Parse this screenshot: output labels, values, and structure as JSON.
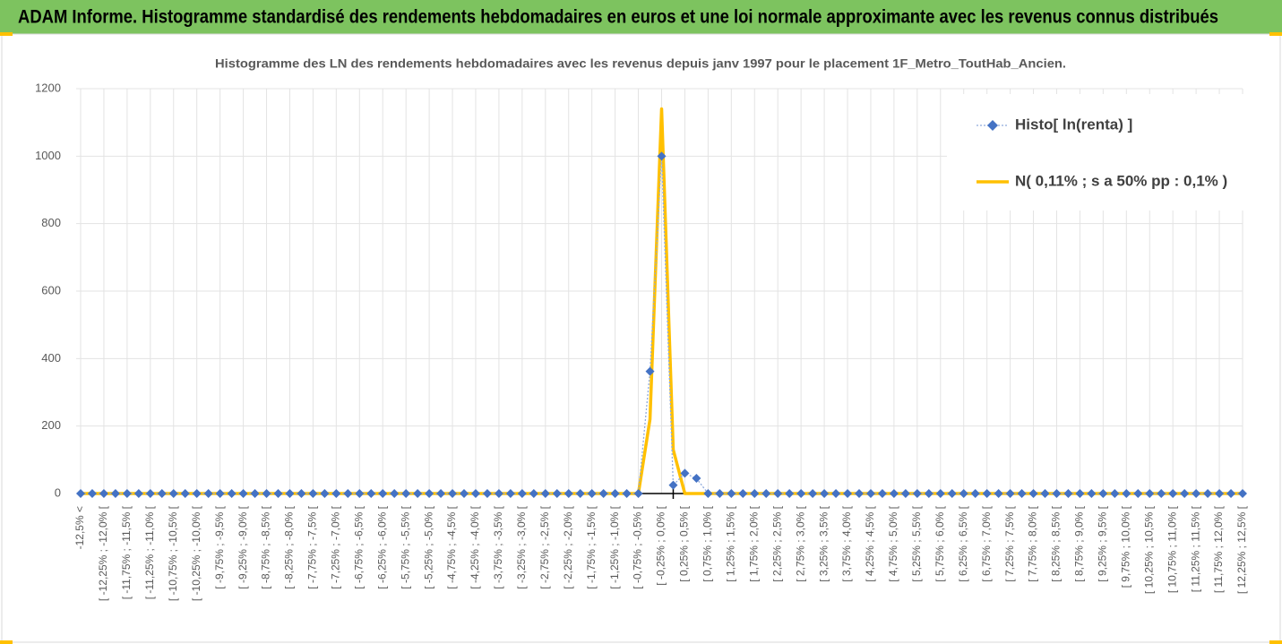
{
  "header": {
    "title": "ADAM Informe. Histogramme standardisé des rendements hebdomadaires en euros et une loi normale approximante avec les revenus connus distribués"
  },
  "chart_data": {
    "type": "line",
    "title": "Histogramme  des LN des rendements hebdomadaires avec les revenus depuis janv 1997 pour le placement 1F_Metro_ToutHab_Ancien.",
    "categories": [
      "-12,5% <",
      null,
      "[ -12,25% ; -12,0% [",
      null,
      "[ -11,75% ; -11,5% [",
      null,
      "[ -11,25% ; -11,0% [",
      null,
      "[ -10,75% ; -10,5% [",
      null,
      "[ -10,25% ; -10,0% [",
      null,
      "[ -9,75% ; -9,5% [",
      null,
      "[ -9,25% ; -9,0% [",
      null,
      "[ -8,75% ; -8,5% [",
      null,
      "[ -8,25% ; -8,0% [",
      null,
      "[ -7,75% ; -7,5% [",
      null,
      "[ -7,25% ; -7,0% [",
      null,
      "[ -6,75% ; -6,5% [",
      null,
      "[ -6,25% ; -6,0% [",
      null,
      "[ -5,75% ; -5,5% [",
      null,
      "[ -5,25% ; -5,0% [",
      null,
      "[ -4,75% ; -4,5% [",
      null,
      "[ -4,25% ; -4,0% [",
      null,
      "[ -3,75% ; -3,5% [",
      null,
      "[ -3,25% ; -3,0% [",
      null,
      "[ -2,75% ; -2,5% [",
      null,
      "[ -2,25% ; -2,0% [",
      null,
      "[ -1,75% ; -1,5% [",
      null,
      "[ -1,25% ; -1,0% [",
      null,
      "[ -0,75% ; -0,5% [",
      null,
      "[ -0,25% ; 0,0% [",
      null,
      "[ 0,25% ; 0,5% [",
      null,
      "[ 0,75% ; 1,0% [",
      null,
      "[ 1,25% ; 1,5% [",
      null,
      "[ 1,75% ; 2,0% [",
      null,
      "[ 2,25% ; 2,5% [",
      null,
      "[ 2,75% ; 3,0% [",
      null,
      "[ 3,25% ; 3,5% [",
      null,
      "[ 3,75% ; 4,0% [",
      null,
      "[ 4,25% ; 4,5% [",
      null,
      "[ 4,75% ; 5,0% [",
      null,
      "[ 5,25% ; 5,5% [",
      null,
      "[ 5,75% ; 6,0% [",
      null,
      "[ 6,25% ; 6,5% [",
      null,
      "[ 6,75% ; 7,0% [",
      null,
      "[ 7,25% ; 7,5% [",
      null,
      "[ 7,75% ; 8,0% [",
      null,
      "[ 8,25% ; 8,5% [",
      null,
      "[ 8,75% ; 9,0% [",
      null,
      "[ 9,25% ; 9,5% [",
      null,
      "[ 9,75% ; 10,0% [",
      null,
      "[ 10,25% ; 10,5% [",
      null,
      "[ 10,75% ; 11,0% [",
      null,
      "[ 11,25% ; 11,5% [",
      null,
      "[ 11,75% ; 12,0% [",
      null,
      "[ 12,25% ; 12,5% ["
    ],
    "series": [
      {
        "name": "Histo[ ln(renta) ]",
        "color": "#4472c4",
        "line_color": "#8faadc",
        "marker": "diamond",
        "dash": "dotted",
        "values": [
          0,
          0,
          0,
          0,
          0,
          0,
          0,
          0,
          0,
          0,
          0,
          0,
          0,
          0,
          0,
          0,
          0,
          0,
          0,
          0,
          0,
          0,
          0,
          0,
          0,
          0,
          0,
          0,
          0,
          0,
          0,
          0,
          0,
          0,
          0,
          0,
          0,
          0,
          0,
          0,
          0,
          0,
          0,
          0,
          0,
          0,
          0,
          0,
          0,
          362,
          1000,
          25,
          60,
          45,
          0,
          0,
          0,
          0,
          0,
          0,
          0,
          0,
          0,
          0,
          0,
          0,
          0,
          0,
          0,
          0,
          0,
          0,
          0,
          0,
          0,
          0,
          0,
          0,
          0,
          0,
          0,
          0,
          0,
          0,
          0,
          0,
          0,
          0,
          0,
          0,
          0,
          0,
          0,
          0,
          0,
          0,
          0,
          0,
          0,
          0,
          0
        ]
      },
      {
        "name": "N( 0,11% ; s a 50% pp : 0,1% )",
        "color": "#ffc000",
        "values": [
          0,
          0,
          0,
          0,
          0,
          0,
          0,
          0,
          0,
          0,
          0,
          0,
          0,
          0,
          0,
          0,
          0,
          0,
          0,
          0,
          0,
          0,
          0,
          0,
          0,
          0,
          0,
          0,
          0,
          0,
          0,
          0,
          0,
          0,
          0,
          0,
          0,
          0,
          0,
          0,
          0,
          0,
          0,
          0,
          0,
          0,
          0,
          0,
          0,
          220,
          1140,
          130,
          0,
          0,
          0,
          0,
          0,
          0,
          0,
          0,
          0,
          0,
          0,
          0,
          0,
          0,
          0,
          0,
          0,
          0,
          0,
          0,
          0,
          0,
          0,
          0,
          0,
          0,
          0,
          0,
          0,
          0,
          0,
          0,
          0,
          0,
          0,
          0,
          0,
          0,
          0,
          0,
          0,
          0,
          0,
          0,
          0,
          0,
          0,
          0,
          0
        ]
      }
    ],
    "ylim": [
      0,
      1200
    ],
    "yticks": [
      0,
      200,
      400,
      600,
      800,
      1000,
      1200
    ],
    "grid": true,
    "legend": "top-right"
  }
}
